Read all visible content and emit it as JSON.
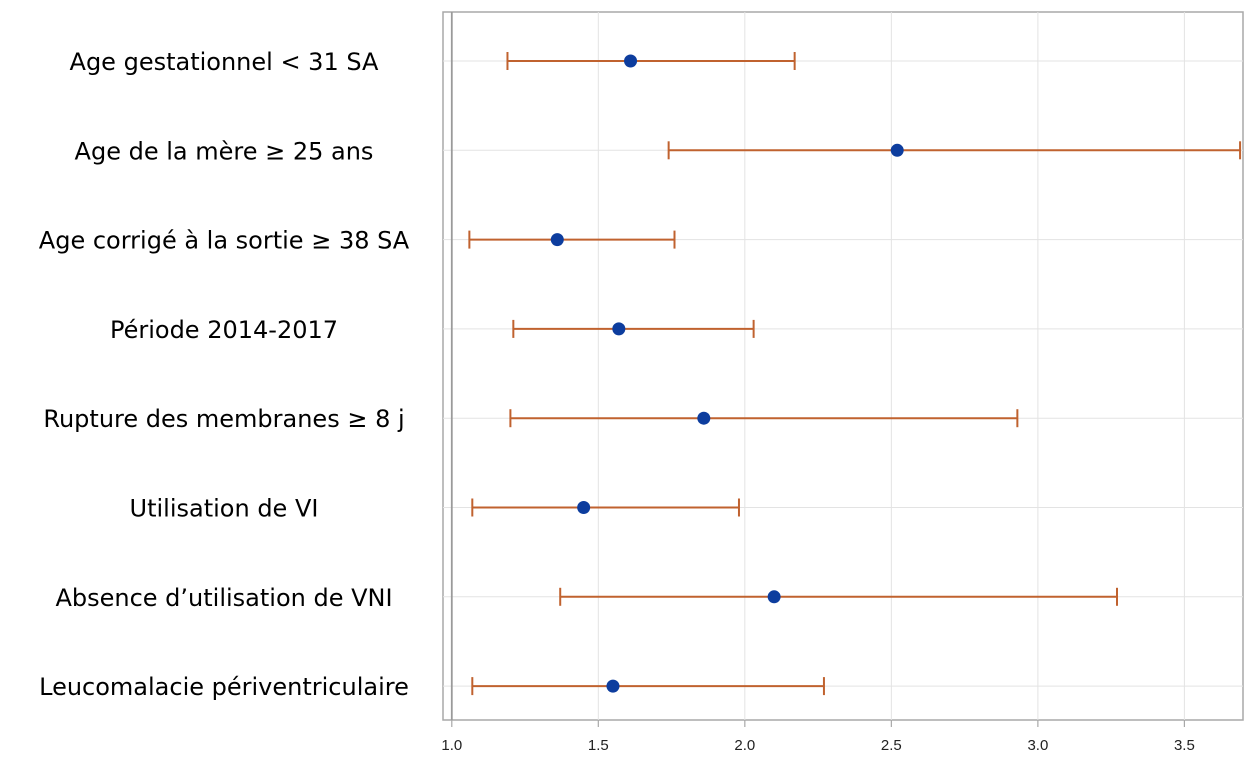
{
  "chart_data": {
    "type": "forest",
    "title": "",
    "xlabel": "",
    "ylabel": "",
    "xlim": [
      0.97,
      3.7
    ],
    "x_ticks": [
      1.0,
      1.5,
      2.0,
      2.5,
      3.0,
      3.5
    ],
    "x_tick_labels": [
      "1.0",
      "1.5",
      "2.0",
      "2.5",
      "3.0",
      "3.5"
    ],
    "reference_line": 1.0,
    "grid": true,
    "rows": [
      {
        "label": "Age gestationnel < 31 SA",
        "estimate": 1.61,
        "lower": 1.19,
        "upper": 2.17
      },
      {
        "label": "Age de la mère ≥ 25 ans",
        "estimate": 2.52,
        "lower": 1.74,
        "upper": 3.69
      },
      {
        "label": "Age corrigé à la sortie ≥ 38 SA",
        "estimate": 1.36,
        "lower": 1.06,
        "upper": 1.76
      },
      {
        "label": "Période 2014-2017",
        "estimate": 1.57,
        "lower": 1.21,
        "upper": 2.03
      },
      {
        "label": "Rupture des membranes ≥ 8 j",
        "estimate": 1.86,
        "lower": 1.2,
        "upper": 2.93
      },
      {
        "label": "Utilisation de VI",
        "estimate": 1.45,
        "lower": 1.07,
        "upper": 1.98
      },
      {
        "label": "Absence d’utilisation de VNI",
        "estimate": 2.1,
        "lower": 1.37,
        "upper": 3.27
      },
      {
        "label": "Leucomalacie périventriculaire",
        "estimate": 1.55,
        "lower": 1.07,
        "upper": 2.27
      }
    ],
    "colors": {
      "interval": "#c0622f",
      "point": "#0d3d9e",
      "grid": "#e3e3e3",
      "frame": "#a8a8a8",
      "reference": "#9a9a9a"
    }
  }
}
